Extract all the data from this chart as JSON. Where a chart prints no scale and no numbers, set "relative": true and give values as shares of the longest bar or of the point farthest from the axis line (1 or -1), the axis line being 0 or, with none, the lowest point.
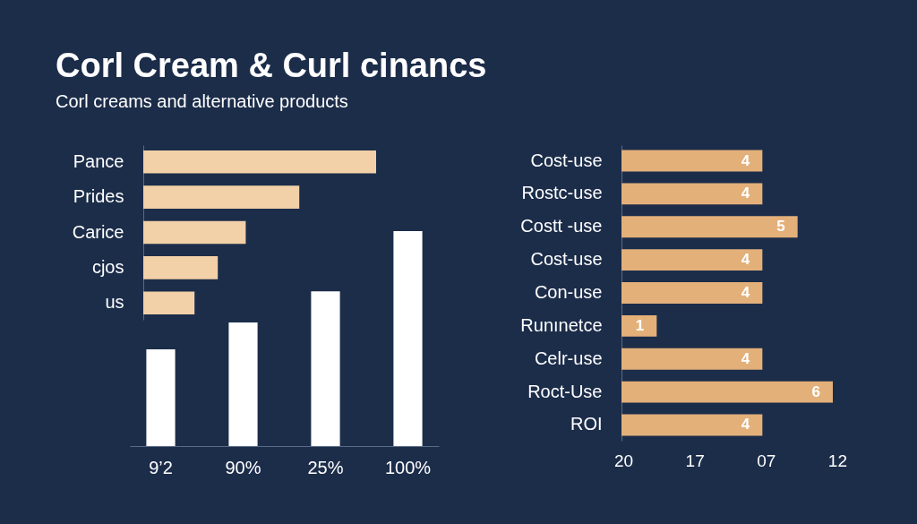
{
  "chart_data": [
    {
      "type": "bar",
      "title": "Corl Cream & Curl cinancs",
      "subtitle": "Corl creams and alternative products",
      "orientation": "horizontal",
      "relative": true,
      "categories": [
        "Pance",
        "Prides",
        "Carice",
        "cjos",
        "us"
      ],
      "values": [
        1,
        0.67,
        0.44,
        0.32,
        0.22
      ],
      "color": "#f2d0a8"
    },
    {
      "type": "bar",
      "relative": true,
      "categories": [
        "9’2",
        "90%",
        "25%",
        "100%"
      ],
      "values": [
        0.45,
        0.575,
        0.72,
        1
      ],
      "color": "#ffffff"
    },
    {
      "type": "bar",
      "orientation": "horizontal",
      "categories": [
        "Cost-use",
        "Rostc-use",
        "Costt -use",
        "Cost-use",
        "Con-use",
        "Runınetce",
        "Celr-use",
        "Roct-Use",
        "ROI"
      ],
      "values": [
        4,
        4,
        5,
        4,
        4,
        1,
        4,
        6,
        4
      ],
      "data_labels": true,
      "color": "#e3b07a",
      "annotations": [
        "20",
        "17",
        "07",
        "12"
      ]
    }
  ]
}
